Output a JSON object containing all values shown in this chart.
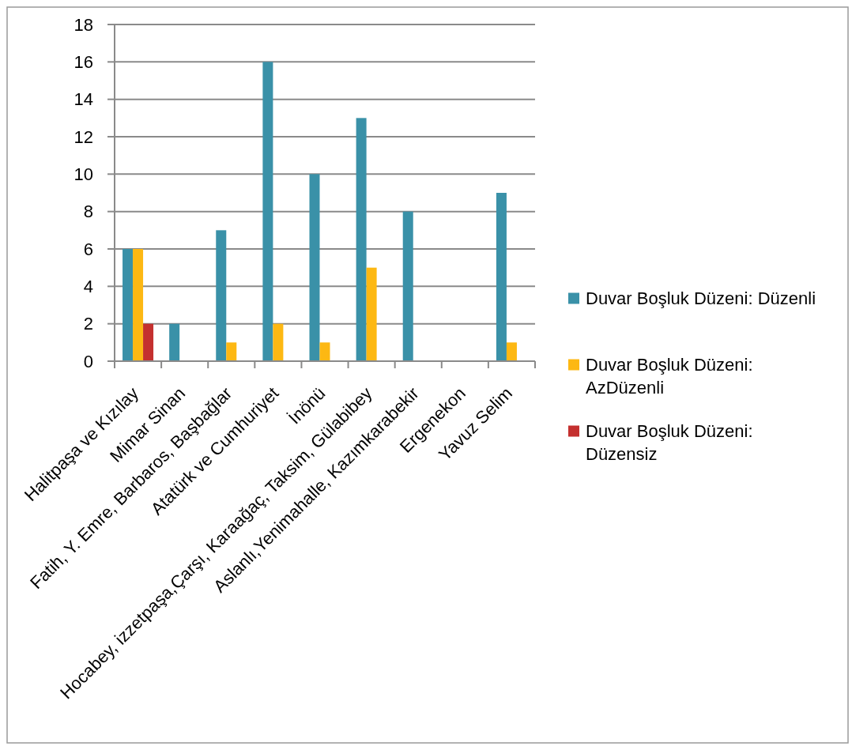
{
  "chart_data": {
    "type": "bar",
    "categories": [
      "Halitpaşa ve Kızılay",
      "Mimar Sinan",
      "Fatih, Y. Emre, Barbaros, Başbağlar",
      "Atatürk ve Cumhuriyet",
      "İnönü",
      "Hocabey, izzetpaşa,Çarşı, Karaağaç, Taksim, Gülabibey",
      "Aslanlı,Yenimahalle, Kazımkarabekir",
      "Ergenekon",
      "Yavuz Selim"
    ],
    "series": [
      {
        "name": "Duvar Boşluk Düzeni: Düzenli",
        "color": "#3a91a8",
        "values": [
          6,
          2,
          7,
          16,
          10,
          13,
          8,
          null,
          9
        ]
      },
      {
        "name": "Duvar Boşluk Düzeni: AzDüzenli",
        "color": "#fdb813",
        "values": [
          6,
          null,
          1,
          2,
          1,
          5,
          null,
          null,
          1
        ]
      },
      {
        "name": "Duvar Boşluk Düzeni: Düzensiz",
        "color": "#c4302f",
        "values": [
          2,
          null,
          null,
          null,
          null,
          null,
          null,
          null,
          null
        ]
      }
    ],
    "ylim": [
      0,
      18
    ],
    "yticks": [
      0,
      2,
      4,
      6,
      8,
      10,
      12,
      14,
      16,
      18
    ],
    "grid": "y",
    "legend": "right"
  }
}
